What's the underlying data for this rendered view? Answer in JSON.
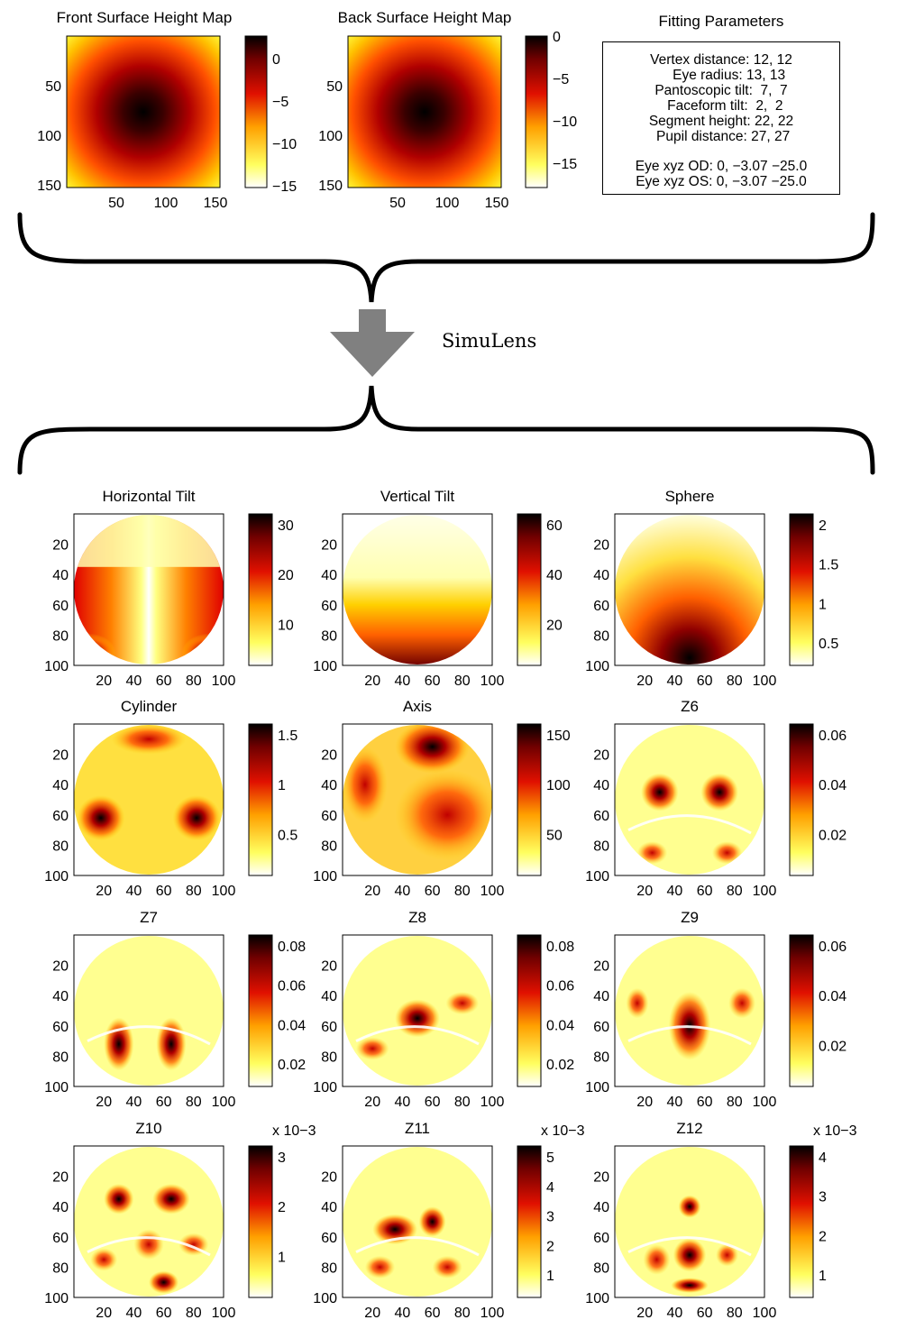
{
  "colors": {
    "hot_dark": "#000000",
    "hot_red": "#d00000",
    "hot_orange": "#ff6a00",
    "hot_yellow": "#ffff30",
    "arrow": "#808080"
  },
  "top": {
    "front": {
      "title": "Front Surface Height Map",
      "yticks": [
        "50",
        "100",
        "150"
      ],
      "xticks": [
        "50",
        "100",
        "150"
      ],
      "cbar_ticks": [
        "0",
        "−5",
        "−10",
        "−15"
      ]
    },
    "back": {
      "title": "Back Surface Height Map",
      "yticks": [
        "50",
        "100",
        "150"
      ],
      "xticks": [
        "50",
        "100",
        "150"
      ],
      "cbar_ticks": [
        "0",
        "−5",
        "−10",
        "−15"
      ]
    },
    "params": {
      "title": "Fitting Parameters",
      "lines": [
        "Vertex distance: 12, 12",
        "    Eye radius: 13, 13",
        "Pantoscopic tilt:  7,  7",
        "  Faceform tilt:  2,  2",
        "Segment height: 22, 22",
        " Pupil distance: 27, 27",
        "Eye xyz OD: 0, −3.07 −25.0",
        "Eye xyz OS: 0, −3.07 −25.0"
      ]
    }
  },
  "process_label": "SimuLens",
  "axis_ticks": [
    "20",
    "40",
    "60",
    "80",
    "100"
  ],
  "panels": [
    {
      "title": "Horizontal Tilt",
      "cbar_ticks": [
        "30",
        "20",
        "10"
      ],
      "exponent": ""
    },
    {
      "title": "Vertical Tilt",
      "cbar_ticks": [
        "60",
        "40",
        "20"
      ],
      "exponent": ""
    },
    {
      "title": "Sphere",
      "cbar_ticks": [
        "2",
        "1.5",
        "1",
        "0.5"
      ],
      "exponent": ""
    },
    {
      "title": "Cylinder",
      "cbar_ticks": [
        "1.5",
        "1",
        "0.5"
      ],
      "exponent": ""
    },
    {
      "title": "Axis",
      "cbar_ticks": [
        "150",
        "100",
        "50"
      ],
      "exponent": ""
    },
    {
      "title": "Z6",
      "cbar_ticks": [
        "0.06",
        "0.04",
        "0.02"
      ],
      "exponent": ""
    },
    {
      "title": "Z7",
      "cbar_ticks": [
        "0.08",
        "0.06",
        "0.04",
        "0.02"
      ],
      "exponent": ""
    },
    {
      "title": "Z8",
      "cbar_ticks": [
        "0.08",
        "0.06",
        "0.04",
        "0.02"
      ],
      "exponent": ""
    },
    {
      "title": "Z9",
      "cbar_ticks": [
        "0.06",
        "0.04",
        "0.02"
      ],
      "exponent": ""
    },
    {
      "title": "Z10",
      "cbar_ticks": [
        "3",
        "2",
        "1"
      ],
      "exponent": "x 10−3"
    },
    {
      "title": "Z11",
      "cbar_ticks": [
        "5",
        "4",
        "3",
        "2",
        "1"
      ],
      "exponent": "x 10−3"
    },
    {
      "title": "Z12",
      "cbar_ticks": [
        "4",
        "3",
        "2",
        "1"
      ],
      "exponent": "x 10−3"
    }
  ]
}
